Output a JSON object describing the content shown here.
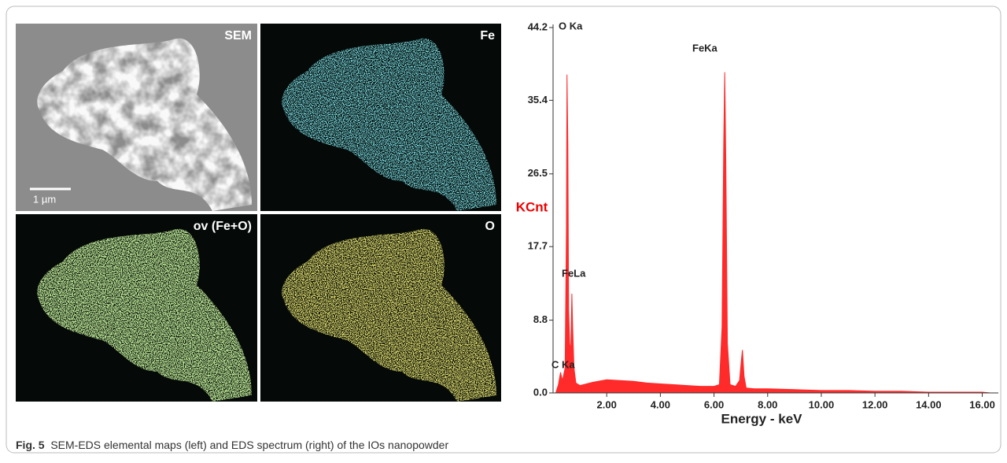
{
  "figure": {
    "panels": [
      {
        "label": "SEM"
      },
      {
        "label": "Fe"
      },
      {
        "label": "ov (Fe+O)"
      },
      {
        "label": "O"
      }
    ],
    "scale_bar": "1 µm",
    "caption": {
      "number": "Fig. 5",
      "text": "SEM-EDS elemental maps (left) and EDS spectrum (right) of the IOs nanopowder"
    }
  },
  "chart_data": {
    "type": "area",
    "x": [
      0.1,
      0.2,
      0.28,
      0.35,
      0.45,
      0.5,
      0.52,
      0.55,
      0.58,
      0.62,
      0.66,
      0.7,
      0.73,
      0.78,
      0.85,
      1.0,
      1.5,
      2.0,
      2.5,
      3.0,
      3.5,
      4.0,
      4.5,
      5.0,
      5.5,
      6.0,
      6.2,
      6.3,
      6.36,
      6.4,
      6.44,
      6.5,
      6.6,
      6.8,
      6.95,
      7.02,
      7.06,
      7.12,
      7.2,
      7.5,
      8.0,
      9.0,
      10.0,
      11.0,
      12.0,
      13.0,
      14.0,
      15.0,
      16.0,
      16.3
    ],
    "values": [
      0,
      1.0,
      2.5,
      1.5,
      3,
      20,
      38.5,
      30,
      10,
      6,
      5,
      12,
      8,
      3,
      1.2,
      0.9,
      1.3,
      1.6,
      1.5,
      1.4,
      1.2,
      1.1,
      1.0,
      0.9,
      0.8,
      0.8,
      1.0,
      8,
      30,
      38.8,
      28,
      6,
      1.0,
      0.8,
      1.5,
      4,
      5.2,
      2,
      0.6,
      0.5,
      0.5,
      0.4,
      0.3,
      0.3,
      0.2,
      0.2,
      0.1,
      0.1,
      0.1,
      0
    ],
    "color": "#ff2a2a",
    "xlabel": "Energy - keV",
    "ylabel": "KCnt",
    "ylabel_color": "#ee0000",
    "xlim": [
      0,
      16.6
    ],
    "ylim": [
      0,
      44.2
    ],
    "xticks": [
      {
        "value": 2,
        "label": "2.00"
      },
      {
        "value": 4,
        "label": "4.00"
      },
      {
        "value": 6,
        "label": "6.00"
      },
      {
        "value": 8,
        "label": "8.00"
      },
      {
        "value": 10,
        "label": "10.00"
      },
      {
        "value": 12,
        "label": "12.00"
      },
      {
        "value": 14,
        "label": "14.00"
      },
      {
        "value": 16,
        "label": "16.00"
      }
    ],
    "yticks": [
      {
        "value": 0,
        "label": "0.0"
      },
      8.8,
      17.7,
      26.5,
      35.4,
      44.2
    ],
    "annotations": [
      {
        "text": "O Ka"
      },
      {
        "text": "FeKa"
      },
      {
        "text": "FeLa"
      },
      {
        "text": "C Ka"
      }
    ]
  }
}
